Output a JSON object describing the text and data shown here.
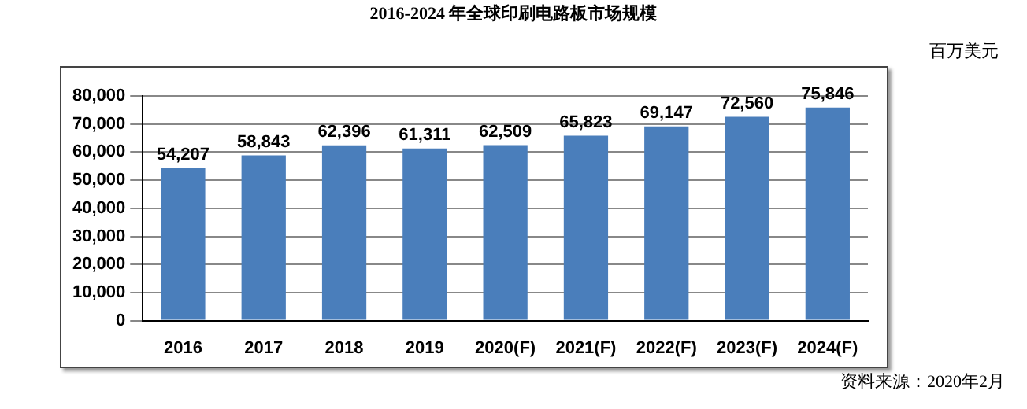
{
  "chart_data": {
    "type": "bar",
    "title": "2016-2024 年全球印刷电路板市场规模",
    "ylabel": "百万美元",
    "categories": [
      "2016",
      "2017",
      "2018",
      "2019",
      "2020(F)",
      "2021(F)",
      "2022(F)",
      "2023(F)",
      "2024(F)"
    ],
    "values": [
      54207,
      58843,
      62396,
      61311,
      62509,
      65823,
      69147,
      72560,
      75846
    ],
    "value_labels": [
      "54,207",
      "58,843",
      "62,396",
      "61,311",
      "62,509",
      "65,823",
      "69,147",
      "72,560",
      "75,846"
    ],
    "color": "#4a7ebb",
    "ylim": [
      0,
      80000
    ],
    "yticks": [
      {
        "value": 0,
        "label": "0"
      },
      {
        "value": 10000,
        "label": "10,000"
      },
      {
        "value": 20000,
        "label": "20,000"
      },
      {
        "value": 30000,
        "label": "30,000"
      },
      {
        "value": 40000,
        "label": "40,000"
      },
      {
        "value": 50000,
        "label": "50,000"
      },
      {
        "value": 60000,
        "label": "60,000"
      },
      {
        "value": 70000,
        "label": "70,000"
      },
      {
        "value": 80000,
        "label": "80,000"
      }
    ],
    "grid": "y",
    "legend": false,
    "annotations": [
      "资料来源：2020年2月"
    ]
  }
}
